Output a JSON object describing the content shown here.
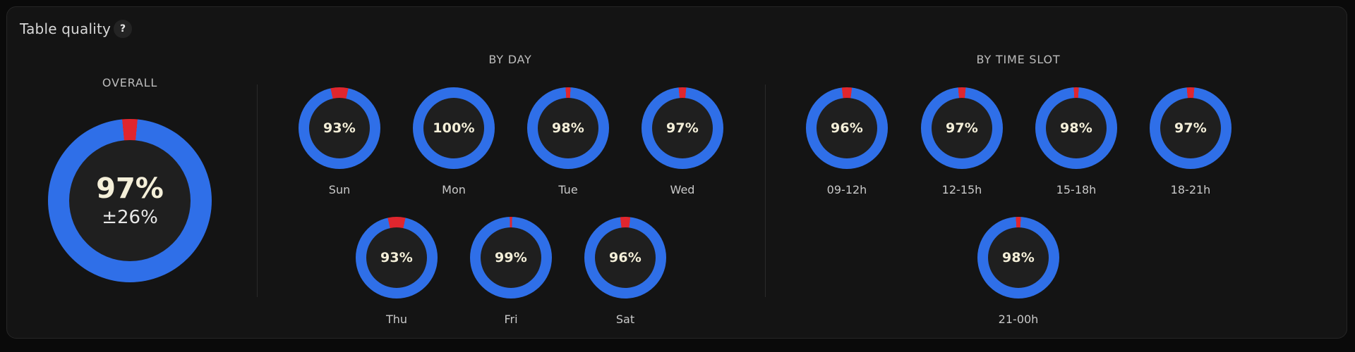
{
  "card": {
    "title": "Table quality",
    "help_label": "?"
  },
  "colors": {
    "good": "#2f6fe8",
    "bad": "#e0262e"
  },
  "overall": {
    "heading": "OVERALL",
    "percent": 97,
    "percent_label": "97%",
    "deviation_label": "±26%"
  },
  "by_day": {
    "heading": "BY DAY",
    "items": [
      {
        "label": "Sun",
        "percent": 93,
        "percent_label": "93%"
      },
      {
        "label": "Mon",
        "percent": 100,
        "percent_label": "100%"
      },
      {
        "label": "Tue",
        "percent": 98,
        "percent_label": "98%"
      },
      {
        "label": "Wed",
        "percent": 97,
        "percent_label": "97%"
      },
      {
        "label": "Thu",
        "percent": 93,
        "percent_label": "93%"
      },
      {
        "label": "Fri",
        "percent": 99,
        "percent_label": "99%"
      },
      {
        "label": "Sat",
        "percent": 96,
        "percent_label": "96%"
      }
    ]
  },
  "by_time_slot": {
    "heading": "BY TIME SLOT",
    "items": [
      {
        "label": "09-12h",
        "percent": 96,
        "percent_label": "96%"
      },
      {
        "label": "12-15h",
        "percent": 97,
        "percent_label": "97%"
      },
      {
        "label": "15-18h",
        "percent": 98,
        "percent_label": "98%"
      },
      {
        "label": "18-21h",
        "percent": 97,
        "percent_label": "97%"
      },
      {
        "label": "21-00h",
        "percent": 98,
        "percent_label": "98%"
      }
    ]
  }
}
